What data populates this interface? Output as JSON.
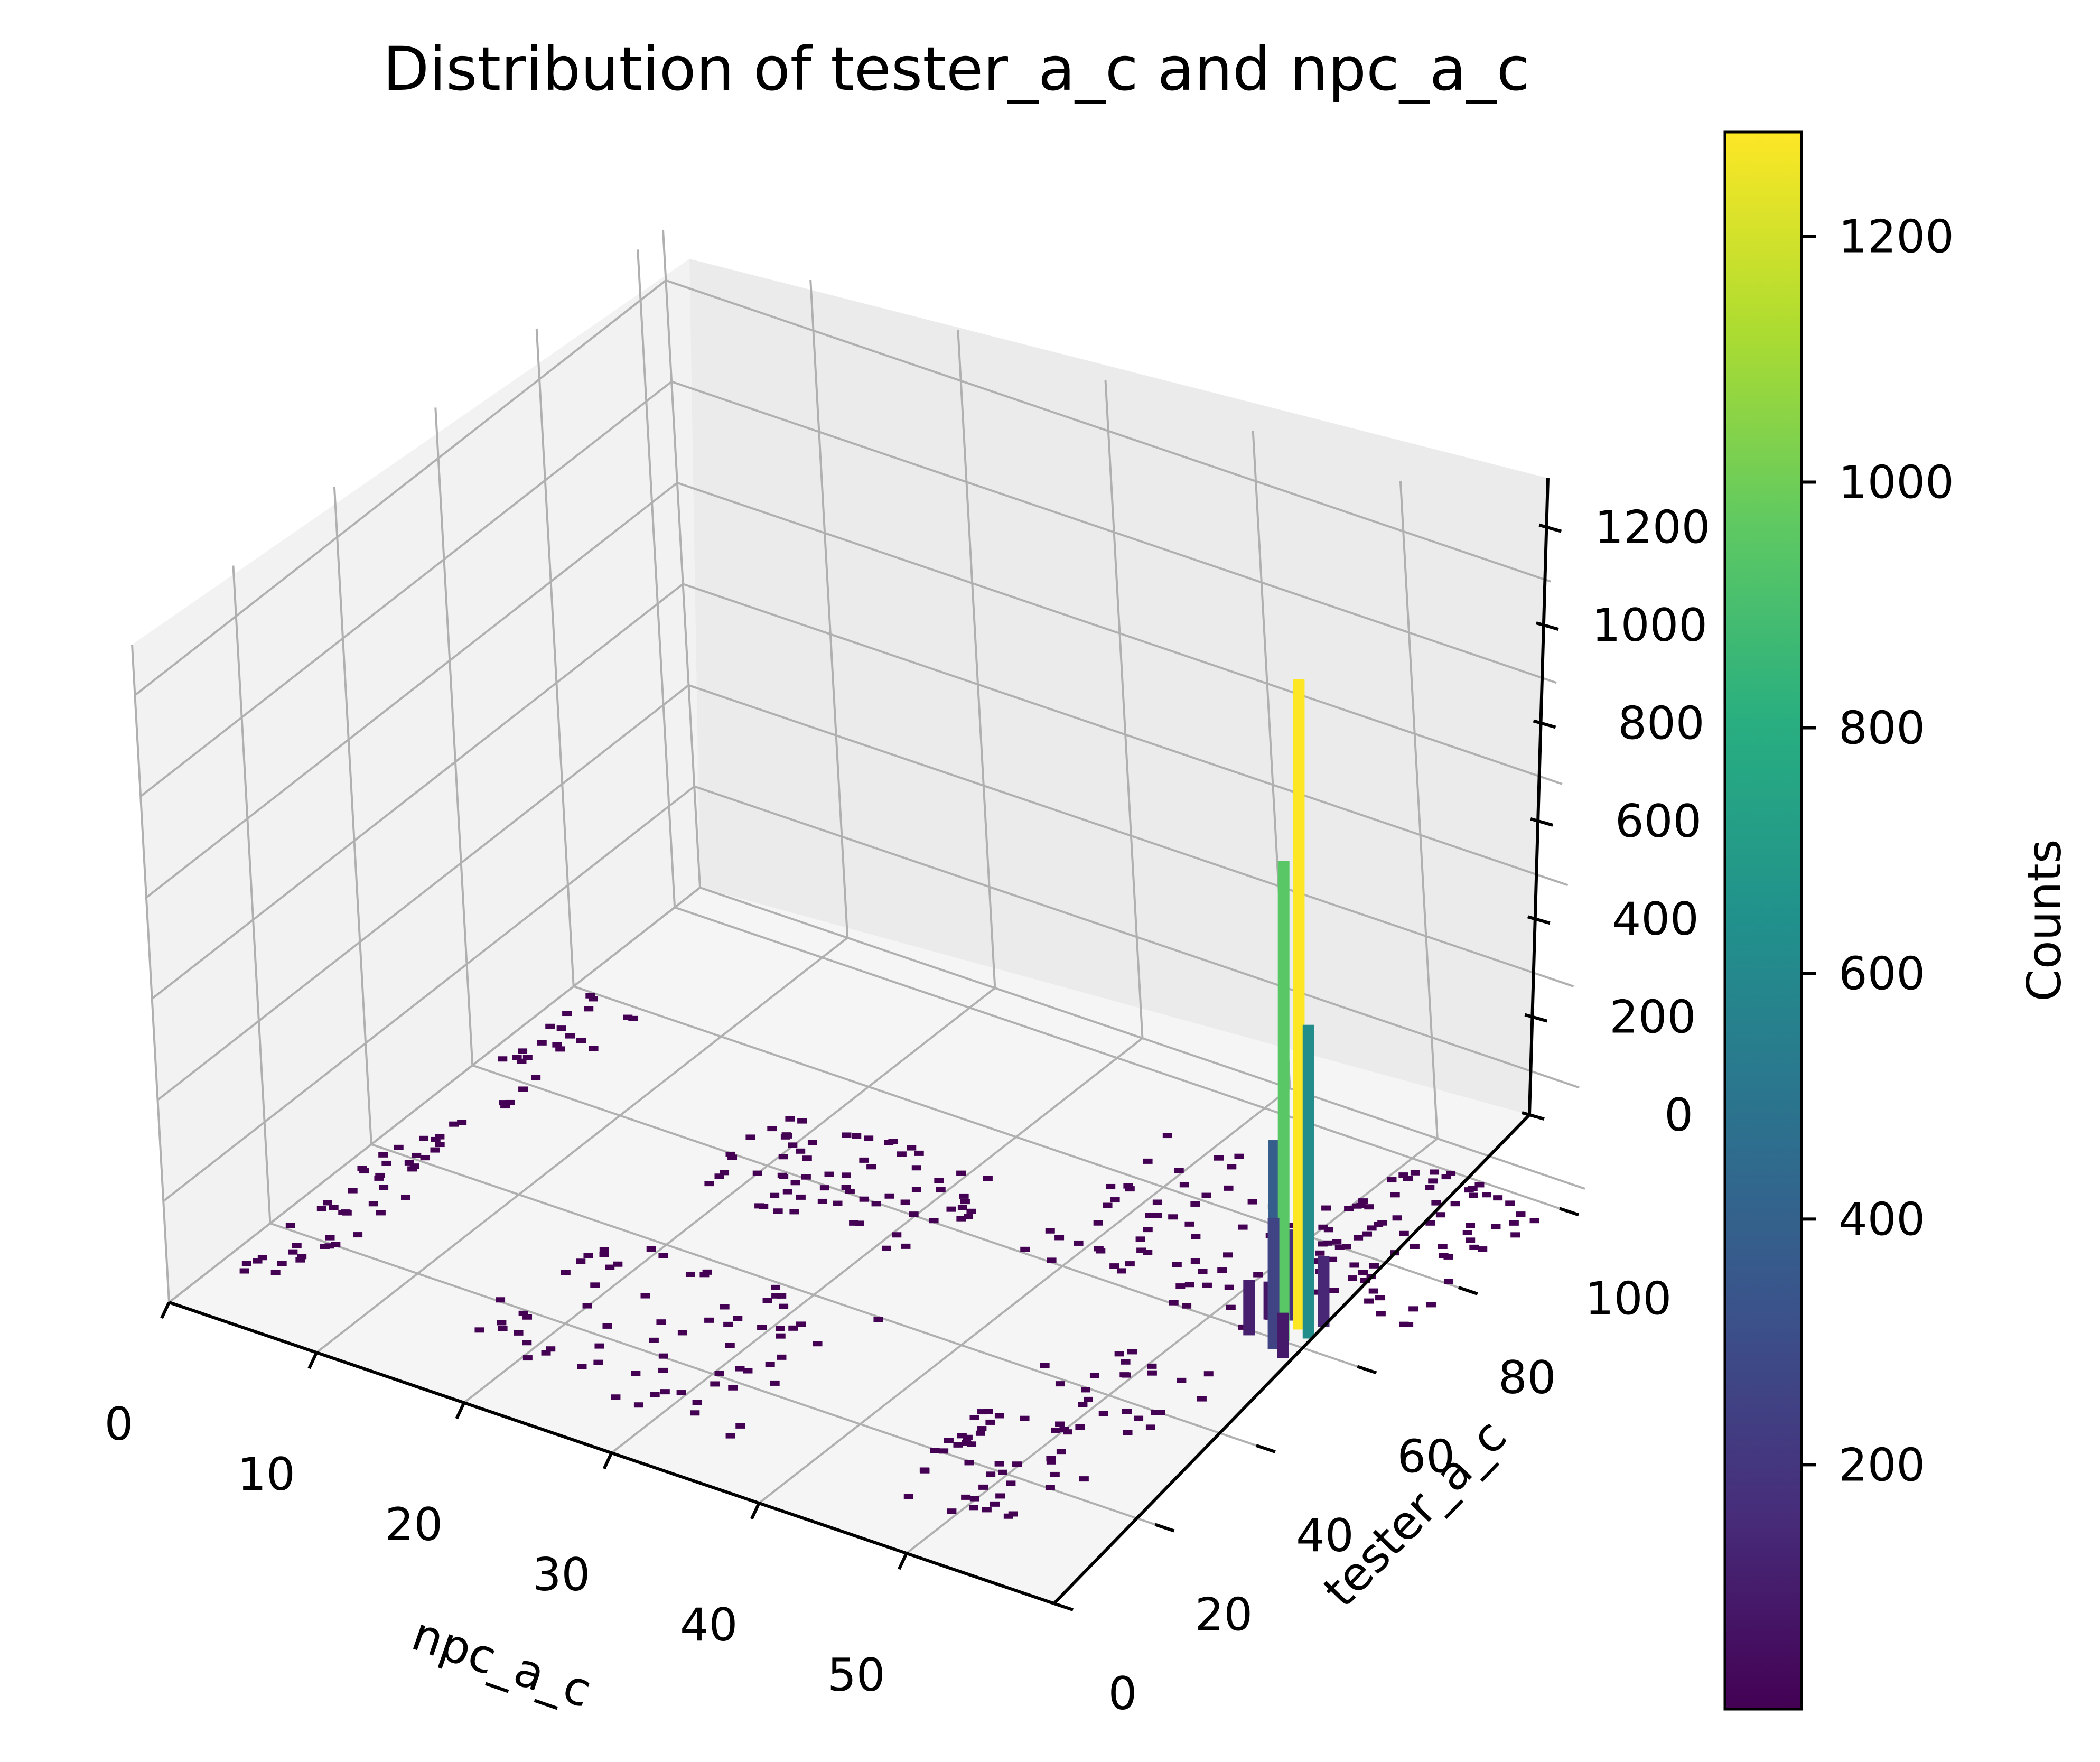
{
  "chart_data": {
    "type": "bar3d",
    "title": "Distribution of tester_a_c and npc_a_c",
    "xlabel": "npc_a_c",
    "ylabel": "tester_a_c",
    "zlabel": "",
    "xlim": [
      0,
      60
    ],
    "ylim": [
      0,
      105
    ],
    "zlim": [
      0,
      1300
    ],
    "x_ticks": [
      "0",
      "10",
      "20",
      "30",
      "40",
      "50"
    ],
    "y_ticks": [
      "0",
      "20",
      "40",
      "60",
      "80",
      "100"
    ],
    "z_ticks": [
      "0",
      "200",
      "400",
      "600",
      "800",
      "1000",
      "1200"
    ],
    "colorbar": {
      "label": "Counts",
      "colormap": "viridis",
      "range": [
        1,
        1285
      ],
      "ticks": [
        "200",
        "400",
        "600",
        "800",
        "1000",
        "1200"
      ]
    },
    "bars": [
      {
        "x": 55,
        "y": 63,
        "count": 1285
      },
      {
        "x": 55,
        "y": 60,
        "count": 950
      },
      {
        "x": 56,
        "y": 62,
        "count": 620
      },
      {
        "x": 54,
        "y": 61,
        "count": 380
      },
      {
        "x": 55,
        "y": 58,
        "count": 260
      },
      {
        "x": 54,
        "y": 64,
        "count": 180
      },
      {
        "x": 56,
        "y": 65,
        "count": 140
      },
      {
        "x": 53,
        "y": 59,
        "count": 110
      },
      {
        "x": 56,
        "y": 57,
        "count": 90
      },
      {
        "x": 53,
        "y": 63,
        "count": 75
      }
    ],
    "low_count_clusters": [
      {
        "x_center": 3,
        "y_center": 45,
        "spread_x": 2,
        "spread_y": 35,
        "count": 1
      },
      {
        "x_center": 25,
        "y_center": 62,
        "spread_x": 8,
        "spread_y": 10,
        "count": 1
      },
      {
        "x_center": 50,
        "y_center": 30,
        "spread_x": 5,
        "spread_y": 20,
        "count": 2
      },
      {
        "x_center": 45,
        "y_center": 75,
        "spread_x": 8,
        "spread_y": 15,
        "count": 1
      },
      {
        "x_center": 25,
        "y_center": 25,
        "spread_x": 10,
        "spread_y": 15,
        "count": 1
      },
      {
        "x_center": 55,
        "y_center": 85,
        "spread_x": 5,
        "spread_y": 15,
        "count": 1
      }
    ]
  }
}
